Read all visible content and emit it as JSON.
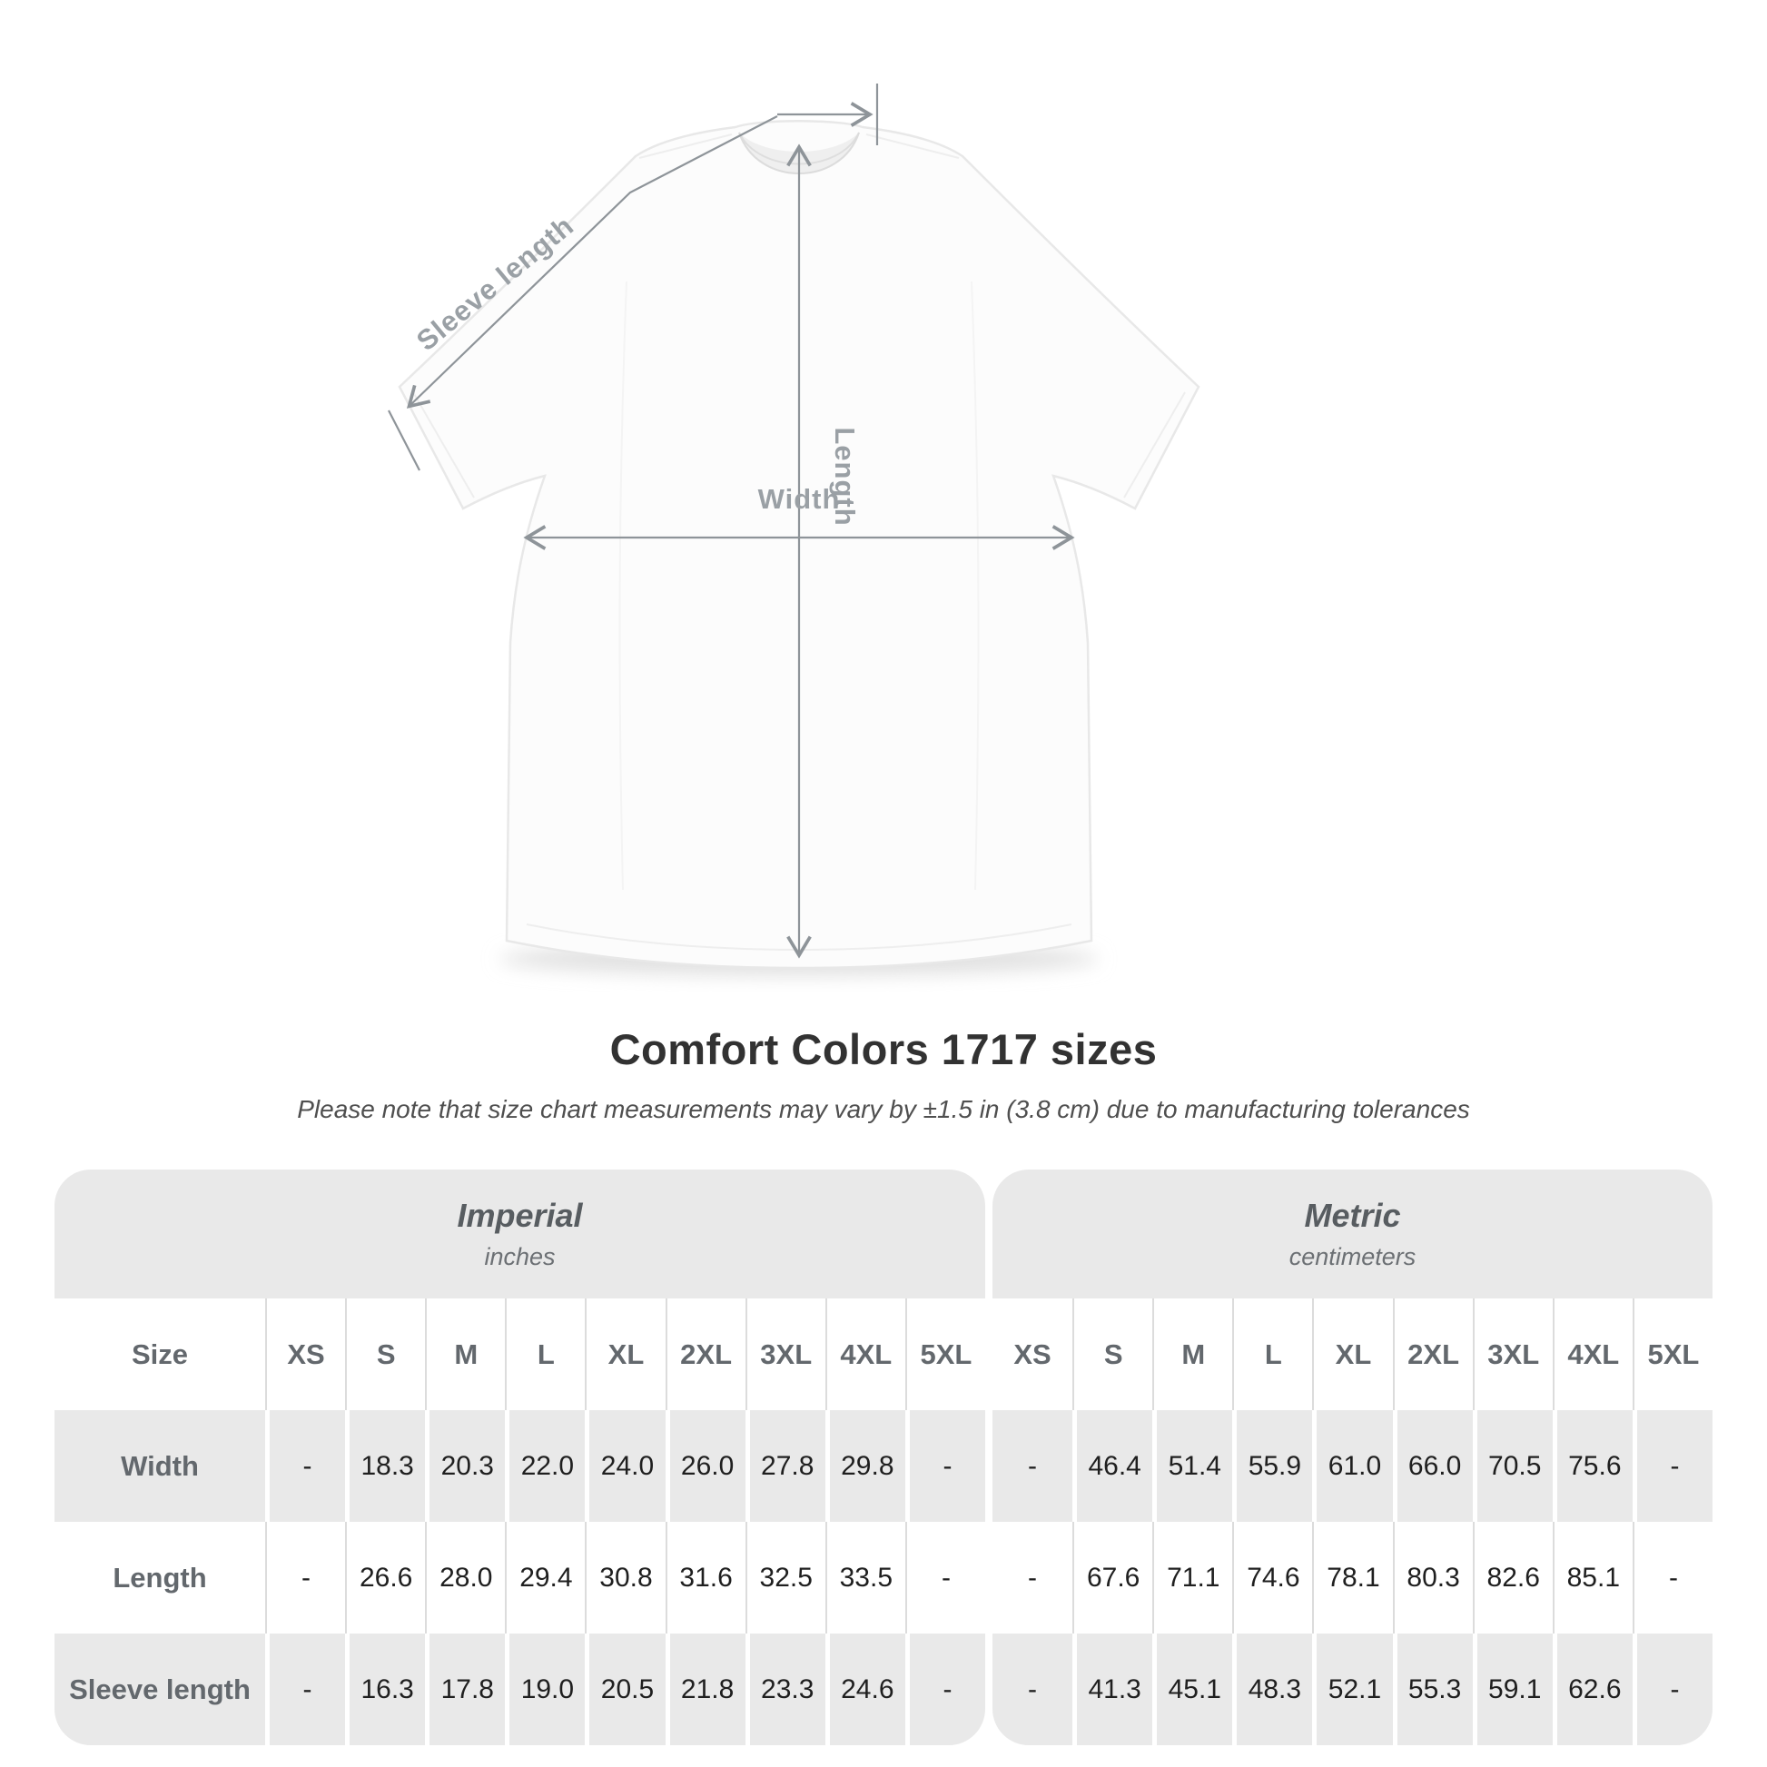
{
  "title": "Comfort Colors 1717 sizes",
  "subtitle": "Please note that size chart measurements may vary by ±1.5 in (3.8 cm) due to manufacturing tolerances",
  "diagram": {
    "sleeve_label": "Sleeve length",
    "length_label": "Length",
    "width_label": "Width",
    "arrow_color": "#8e9499",
    "label_color": "#9aa0a5"
  },
  "table": {
    "size_label": "Size",
    "sizes": [
      "XS",
      "S",
      "M",
      "L",
      "XL",
      "2XL",
      "3XL",
      "4XL",
      "5XL"
    ],
    "sections": [
      {
        "name": "Imperial",
        "unit": "inches"
      },
      {
        "name": "Metric",
        "unit": "centimeters"
      }
    ],
    "rows": [
      {
        "label": "Width",
        "imperial": [
          "-",
          "18.3",
          "20.3",
          "22.0",
          "24.0",
          "26.0",
          "27.8",
          "29.8",
          "-"
        ],
        "metric": [
          "-",
          "46.4",
          "51.4",
          "55.9",
          "61.0",
          "66.0",
          "70.5",
          "75.6",
          "-"
        ]
      },
      {
        "label": "Length",
        "imperial": [
          "-",
          "26.6",
          "28.0",
          "29.4",
          "30.8",
          "31.6",
          "32.5",
          "33.5",
          "-"
        ],
        "metric": [
          "-",
          "67.6",
          "71.1",
          "74.6",
          "78.1",
          "80.3",
          "82.6",
          "85.1",
          "-"
        ]
      },
      {
        "label": "Sleeve length",
        "imperial": [
          "-",
          "16.3",
          "17.8",
          "19.0",
          "20.5",
          "21.8",
          "23.3",
          "24.6",
          "-"
        ],
        "metric": [
          "-",
          "41.3",
          "45.1",
          "48.3",
          "52.1",
          "55.3",
          "59.1",
          "62.6",
          "-"
        ]
      }
    ]
  },
  "chart_data": {
    "type": "table",
    "title": "Comfort Colors 1717 sizes",
    "columns": [
      "XS",
      "S",
      "M",
      "L",
      "XL",
      "2XL",
      "3XL",
      "4XL",
      "5XL"
    ],
    "units": [
      "inches",
      "centimeters"
    ],
    "rows": [
      {
        "label": "Width",
        "inches": [
          null,
          18.3,
          20.3,
          22.0,
          24.0,
          26.0,
          27.8,
          29.8,
          null
        ],
        "centimeters": [
          null,
          46.4,
          51.4,
          55.9,
          61.0,
          66.0,
          70.5,
          75.6,
          null
        ]
      },
      {
        "label": "Length",
        "inches": [
          null,
          26.6,
          28.0,
          29.4,
          30.8,
          31.6,
          32.5,
          33.5,
          null
        ],
        "centimeters": [
          null,
          67.6,
          71.1,
          74.6,
          78.1,
          80.3,
          82.6,
          85.1,
          null
        ]
      },
      {
        "label": "Sleeve length",
        "inches": [
          null,
          16.3,
          17.8,
          19.0,
          20.5,
          21.8,
          23.3,
          24.6,
          null
        ],
        "centimeters": [
          null,
          41.3,
          45.1,
          48.3,
          52.1,
          55.3,
          59.1,
          62.6,
          null
        ]
      }
    ]
  }
}
